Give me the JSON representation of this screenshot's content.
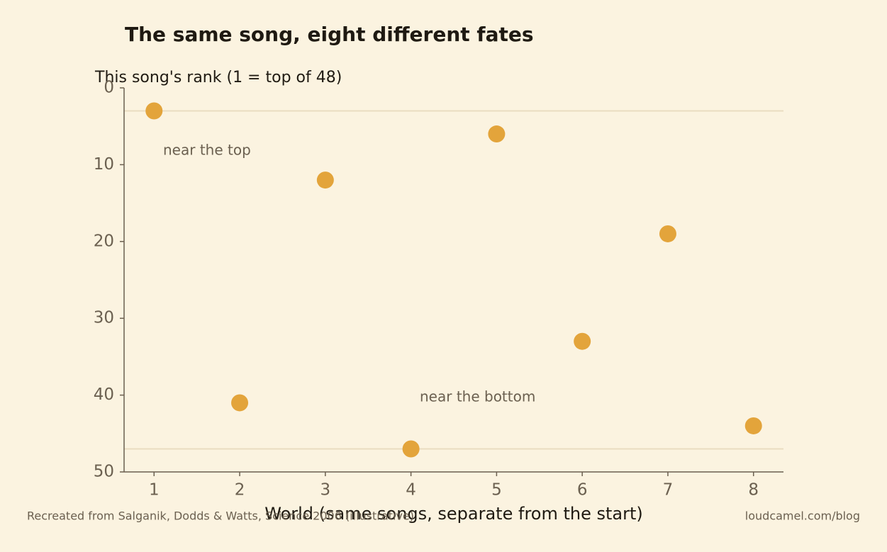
{
  "chart_data": {
    "type": "scatter",
    "title": "The same song, eight different fates",
    "y_label": "This song's rank (1 = top of 48)",
    "x_label": "World (same songs, separate from the start)",
    "x": [
      1,
      2,
      3,
      4,
      5,
      6,
      7,
      8
    ],
    "values": [
      3,
      41,
      12,
      47,
      6,
      33,
      19,
      44
    ],
    "color": "#e3a43b",
    "xlim": [
      0.65,
      8.35
    ],
    "ylim": [
      0,
      50
    ],
    "y_inverted": true,
    "xticks": [
      1,
      2,
      3,
      4,
      5,
      6,
      7,
      8
    ],
    "yticks": [
      0,
      10,
      20,
      30,
      40,
      50
    ],
    "reference_lines": [
      3,
      47
    ],
    "annotations": [
      "near the top",
      "near the bottom"
    ]
  },
  "footer": {
    "source": "Recreated from Salganik, Dodds & Watts, Science 2006 (illustrative)",
    "site": "loudcamel.com/blog"
  }
}
